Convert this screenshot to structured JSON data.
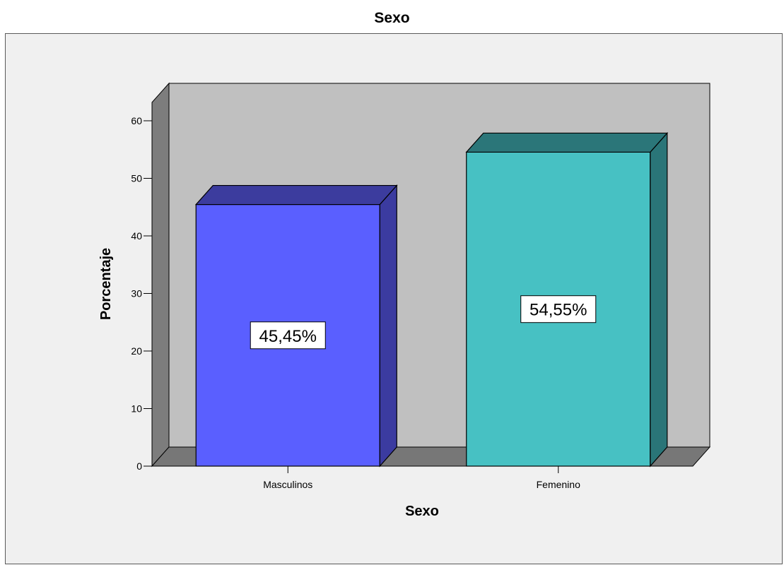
{
  "chart_data": {
    "type": "bar",
    "title": "Sexo",
    "xlabel": "Sexo",
    "ylabel": "Porcentaje",
    "categories": [
      "Masculinos",
      "Femenino"
    ],
    "values": [
      45.45,
      54.55
    ],
    "data_labels": [
      "45,45%",
      "54,55%"
    ],
    "ylim": [
      0,
      65
    ],
    "yticks": [
      0,
      10,
      20,
      30,
      40,
      50,
      60
    ],
    "style": "3d",
    "grid": false,
    "legend": "none",
    "colors": {
      "bars": [
        "#5a5fff",
        "#47c1c3"
      ],
      "bars_side": [
        "#3b3ba0",
        "#2a7578"
      ],
      "bars_top": [
        "#3c3c9e",
        "#2b7679"
      ],
      "back_wall": "#c0c0c0",
      "side_wall": "#7d7d7d",
      "floor": "#777777",
      "plot_background": "#f0f0f0"
    }
  }
}
